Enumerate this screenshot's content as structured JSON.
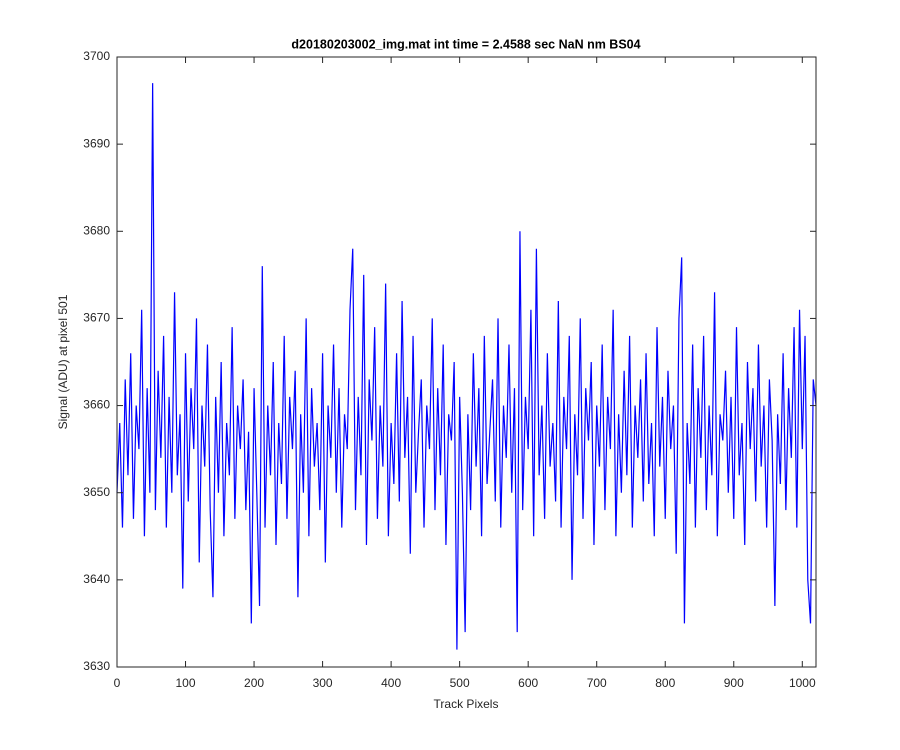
{
  "chart_data": {
    "type": "line",
    "title": "d20180203002_img.mat int time = 2.4588 sec  NaN nm BS04",
    "x_label": "Track Pixels",
    "y_label": "Signal (ADU) at pixel 501",
    "xlim": [
      0,
      1020
    ],
    "xticks": [
      0,
      100,
      200,
      300,
      400,
      500,
      600,
      700,
      800,
      900,
      1000
    ],
    "ylim": [
      3630,
      3700
    ],
    "yticks": [
      3630,
      3640,
      3650,
      3660,
      3670,
      3680,
      3690,
      3700
    ],
    "x": [
      0,
      4,
      8,
      12,
      16,
      20,
      24,
      28,
      32,
      36,
      40,
      44,
      48,
      52,
      56,
      60,
      64,
      68,
      72,
      76,
      80,
      84,
      88,
      92,
      96,
      100,
      104,
      108,
      112,
      116,
      120,
      124,
      128,
      132,
      136,
      140,
      144,
      148,
      152,
      156,
      160,
      164,
      168,
      172,
      176,
      180,
      184,
      188,
      192,
      196,
      200,
      204,
      208,
      212,
      216,
      220,
      224,
      228,
      232,
      236,
      240,
      244,
      248,
      252,
      256,
      260,
      264,
      268,
      272,
      276,
      280,
      284,
      288,
      292,
      296,
      300,
      304,
      308,
      312,
      316,
      320,
      324,
      328,
      332,
      336,
      340,
      344,
      348,
      352,
      356,
      360,
      364,
      368,
      372,
      376,
      380,
      384,
      388,
      392,
      396,
      400,
      404,
      408,
      412,
      416,
      420,
      424,
      428,
      432,
      436,
      440,
      444,
      448,
      452,
      456,
      460,
      464,
      468,
      472,
      476,
      480,
      484,
      488,
      492,
      496,
      500,
      504,
      508,
      512,
      516,
      520,
      524,
      528,
      532,
      536,
      540,
      544,
      548,
      552,
      556,
      560,
      564,
      568,
      572,
      576,
      580,
      584,
      588,
      592,
      596,
      600,
      604,
      608,
      612,
      616,
      620,
      624,
      628,
      632,
      636,
      640,
      644,
      648,
      652,
      656,
      660,
      664,
      668,
      672,
      676,
      680,
      684,
      688,
      692,
      696,
      700,
      704,
      708,
      712,
      716,
      720,
      724,
      728,
      732,
      736,
      740,
      744,
      748,
      752,
      756,
      760,
      764,
      768,
      772,
      776,
      780,
      784,
      788,
      792,
      796,
      800,
      804,
      808,
      812,
      816,
      820,
      824,
      828,
      832,
      836,
      840,
      844,
      848,
      852,
      856,
      860,
      864,
      868,
      872,
      876,
      880,
      884,
      888,
      892,
      896,
      900,
      904,
      908,
      912,
      916,
      920,
      924,
      928,
      932,
      936,
      940,
      944,
      948,
      952,
      956,
      960,
      964,
      968,
      972,
      976,
      980,
      984,
      988,
      992,
      996,
      1000,
      1004,
      1008,
      1012,
      1016,
      1020
    ],
    "series": [
      {
        "color": "#0000ff",
        "values": [
          3650,
          3658,
          3646,
          3663,
          3652,
          3666,
          3647,
          3660,
          3655,
          3671,
          3645,
          3662,
          3650,
          3697,
          3648,
          3664,
          3654,
          3668,
          3646,
          3661,
          3650,
          3673,
          3652,
          3659,
          3639,
          3666,
          3649,
          3662,
          3655,
          3670,
          3642,
          3660,
          3653,
          3667,
          3648,
          3638,
          3661,
          3650,
          3665,
          3645,
          3658,
          3652,
          3669,
          3647,
          3660,
          3655,
          3663,
          3648,
          3657,
          3635,
          3662,
          3650,
          3637,
          3676,
          3646,
          3660,
          3652,
          3665,
          3644,
          3658,
          3651,
          3668,
          3647,
          3661,
          3655,
          3664,
          3638,
          3659,
          3650,
          3670,
          3645,
          3662,
          3653,
          3658,
          3648,
          3666,
          3642,
          3660,
          3654,
          3667,
          3650,
          3662,
          3646,
          3659,
          3655,
          3671,
          3678,
          3648,
          3661,
          3652,
          3675,
          3644,
          3663,
          3656,
          3669,
          3647,
          3660,
          3653,
          3674,
          3645,
          3658,
          3651,
          3666,
          3649,
          3672,
          3654,
          3661,
          3643,
          3668,
          3650,
          3657,
          3663,
          3646,
          3660,
          3655,
          3670,
          3648,
          3662,
          3652,
          3667,
          3644,
          3659,
          3656,
          3665,
          3632,
          3661,
          3650,
          3634,
          3659,
          3648,
          3666,
          3653,
          3662,
          3645,
          3668,
          3651,
          3657,
          3663,
          3649,
          3670,
          3646,
          3660,
          3654,
          3667,
          3650,
          3662,
          3634,
          3680,
          3648,
          3661,
          3655,
          3671,
          3645,
          3678,
          3652,
          3660,
          3647,
          3666,
          3653,
          3658,
          3649,
          3672,
          3646,
          3661,
          3655,
          3668,
          3640,
          3659,
          3652,
          3670,
          3647,
          3662,
          3656,
          3665,
          3644,
          3660,
          3653,
          3667,
          3648,
          3661,
          3655,
          3671,
          3645,
          3659,
          3650,
          3664,
          3652,
          3668,
          3646,
          3660,
          3654,
          3663,
          3649,
          3666,
          3651,
          3658,
          3645,
          3669,
          3653,
          3661,
          3647,
          3664,
          3655,
          3660,
          3643,
          3670,
          3677,
          3635,
          3658,
          3651,
          3667,
          3646,
          3662,
          3654,
          3668,
          3648,
          3660,
          3652,
          3673,
          3645,
          3659,
          3656,
          3664,
          3650,
          3661,
          3647,
          3669,
          3652,
          3658,
          3644,
          3665,
          3655,
          3662,
          3649,
          3667,
          3653,
          3660,
          3646,
          3663,
          3656,
          3637,
          3659,
          3651,
          3666,
          3648,
          3662,
          3654,
          3669,
          3646,
          3671,
          3655,
          3668,
          3640,
          3635,
          3663,
          3660
        ]
      }
    ]
  }
}
